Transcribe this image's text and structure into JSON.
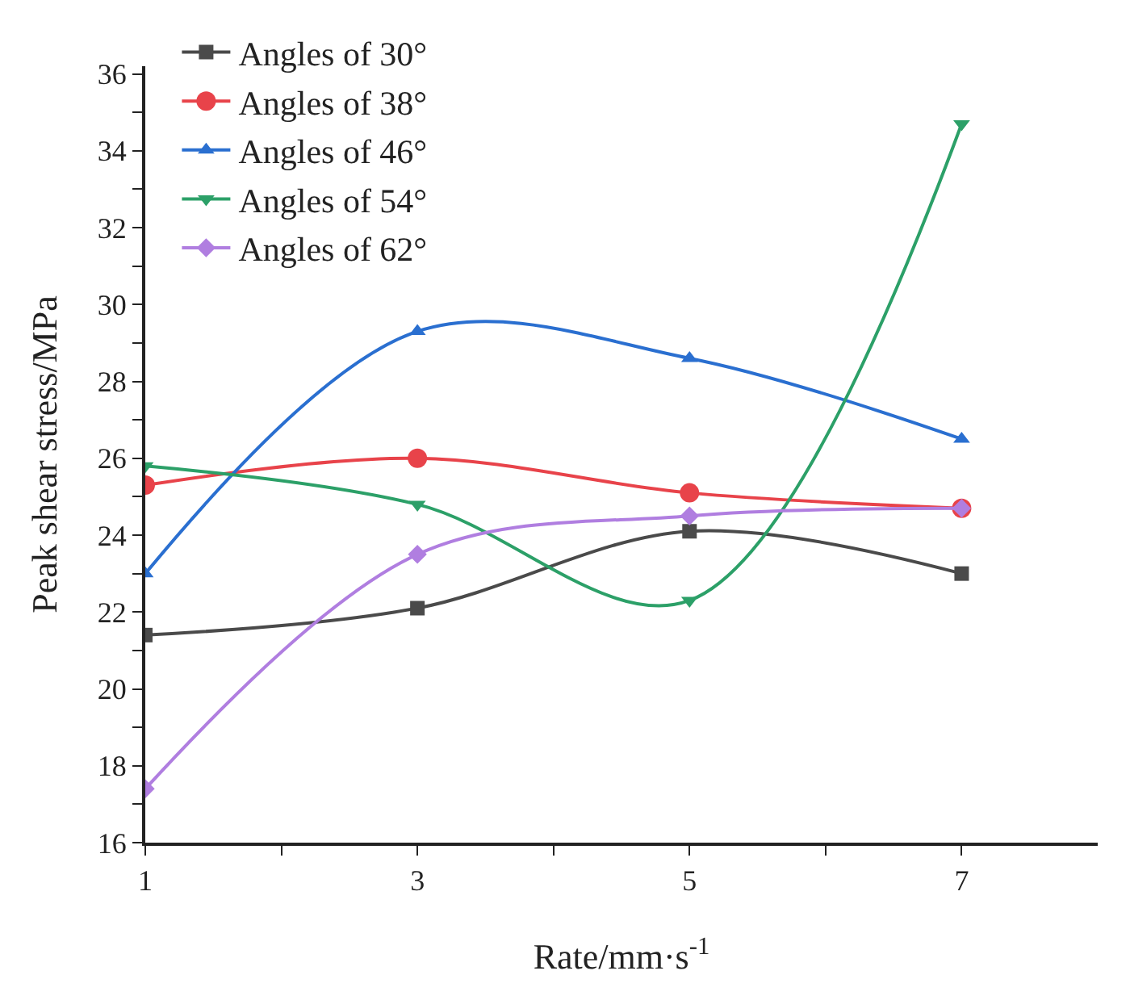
{
  "chart_data": {
    "type": "line",
    "xlabel": "Rate/mm·s$^{-1}$",
    "ylabel": "Peak shear stress/MPa",
    "x": [
      1,
      3,
      5,
      7
    ],
    "series": [
      {
        "name": "Angles of 30°",
        "color": "#4a4a4a",
        "marker": "square",
        "values": [
          21.4,
          22.1,
          24.1,
          23.0
        ]
      },
      {
        "name": "Angles of 38°",
        "color": "#e8434a",
        "marker": "circle",
        "values": [
          25.3,
          26.0,
          25.1,
          24.7
        ]
      },
      {
        "name": "Angles of 46°",
        "color": "#2a6fd0",
        "marker": "triangle",
        "values": [
          23.0,
          29.3,
          28.6,
          26.5
        ]
      },
      {
        "name": "Angles of 54°",
        "color": "#2ca068",
        "marker": "triangle-down",
        "values": [
          25.8,
          24.8,
          22.3,
          34.7
        ]
      },
      {
        "name": "Angles of 62°",
        "color": "#b07ee0",
        "marker": "diamond",
        "values": [
          17.4,
          23.5,
          24.5,
          24.7
        ]
      }
    ],
    "xlim": [
      1,
      8
    ],
    "xticks": [
      1,
      {
        "value": 2,
        "label": null
      },
      3,
      {
        "value": 4,
        "label": null
      },
      5,
      {
        "value": 6,
        "label": null
      },
      7
    ],
    "ylim": [
      16,
      36.2
    ],
    "yticks": [
      16,
      {
        "value": 17,
        "label": null
      },
      18,
      {
        "value": 19,
        "label": null
      },
      20,
      {
        "value": 21,
        "label": null
      },
      22,
      {
        "value": 23,
        "label": null
      },
      24,
      {
        "value": 25,
        "label": null
      },
      26,
      {
        "value": 27,
        "label": null
      },
      28,
      {
        "value": 29,
        "label": null
      },
      30,
      {
        "value": 31,
        "label": null
      },
      32,
      {
        "value": 33,
        "label": null
      },
      34,
      {
        "value": 35,
        "label": null
      },
      36
    ],
    "grid": false,
    "legend": "top left",
    "line_style": "solid"
  }
}
